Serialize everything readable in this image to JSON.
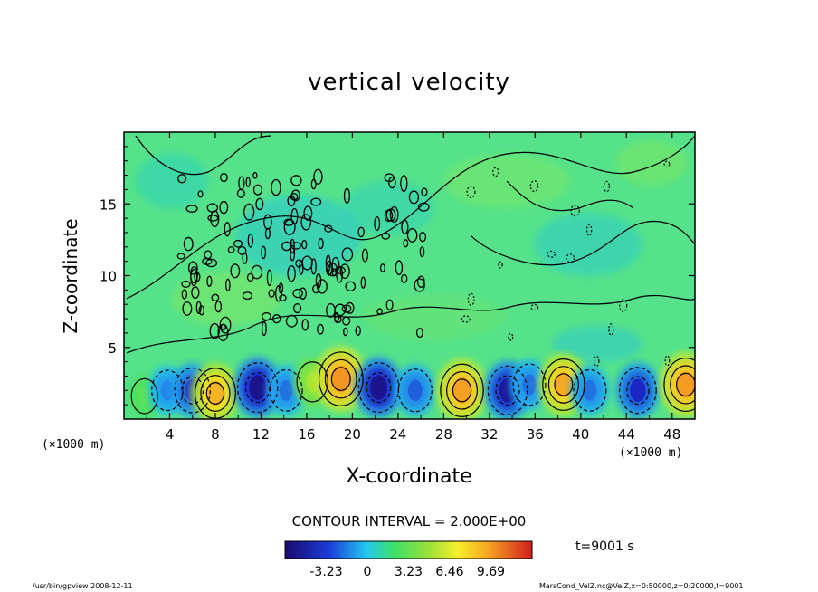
{
  "title": "vertical velocity",
  "chart_data": {
    "type": "heatmap",
    "title": "vertical velocity",
    "xlabel": "X-coordinate",
    "ylabel": "Z-coordinate",
    "x_unit": "(×1000 m)",
    "xlim": [
      0,
      50
    ],
    "ylim": [
      0,
      20
    ],
    "x_ticks": [
      4,
      8,
      12,
      16,
      20,
      24,
      28,
      32,
      36,
      40,
      44,
      48
    ],
    "y_ticks": [
      5,
      10,
      15
    ],
    "contour_interval": "CONTOUR INTERVAL = 2.000E+00",
    "colorbar": {
      "range": [
        -6.46,
        12.92
      ],
      "tick_values": [
        -3.23,
        0,
        3.23,
        6.46,
        9.69
      ],
      "tick_labels": [
        "-3.23",
        "0",
        "3.23",
        "6.46",
        "9.69"
      ]
    },
    "cells": [
      {
        "x": 1.8,
        "z": 1.6,
        "value": 0.8
      },
      {
        "x": 3.8,
        "z": 2.0,
        "value": -2.6
      },
      {
        "x": 6.0,
        "z": 2.0,
        "value": -4.2
      },
      {
        "x": 8.0,
        "z": 1.8,
        "value": 6.0
      },
      {
        "x": 11.7,
        "z": 2.2,
        "value": -5.8
      },
      {
        "x": 14.2,
        "z": 2.0,
        "value": -3.0
      },
      {
        "x": 16.5,
        "z": 2.6,
        "value": 2.5
      },
      {
        "x": 19.0,
        "z": 2.8,
        "value": 7.2
      },
      {
        "x": 22.3,
        "z": 2.2,
        "value": -5.8
      },
      {
        "x": 25.5,
        "z": 2.0,
        "value": -3.4
      },
      {
        "x": 29.6,
        "z": 2.0,
        "value": 6.8
      },
      {
        "x": 33.6,
        "z": 2.0,
        "value": -5.5
      },
      {
        "x": 35.5,
        "z": 2.4,
        "value": -3.0
      },
      {
        "x": 38.5,
        "z": 2.4,
        "value": 6.4
      },
      {
        "x": 40.8,
        "z": 2.0,
        "value": -3.0
      },
      {
        "x": 45.0,
        "z": 2.0,
        "value": -4.6
      },
      {
        "x": 49.2,
        "z": 2.4,
        "value": 7.0
      }
    ]
  },
  "time_label": "t=9001 s",
  "footer_left": "/usr/bin/gpview   2008-12-11",
  "footer_right": "MarsCond_VelZ.nc@VelZ,x=0:50000,z=0:20000,t=9001"
}
